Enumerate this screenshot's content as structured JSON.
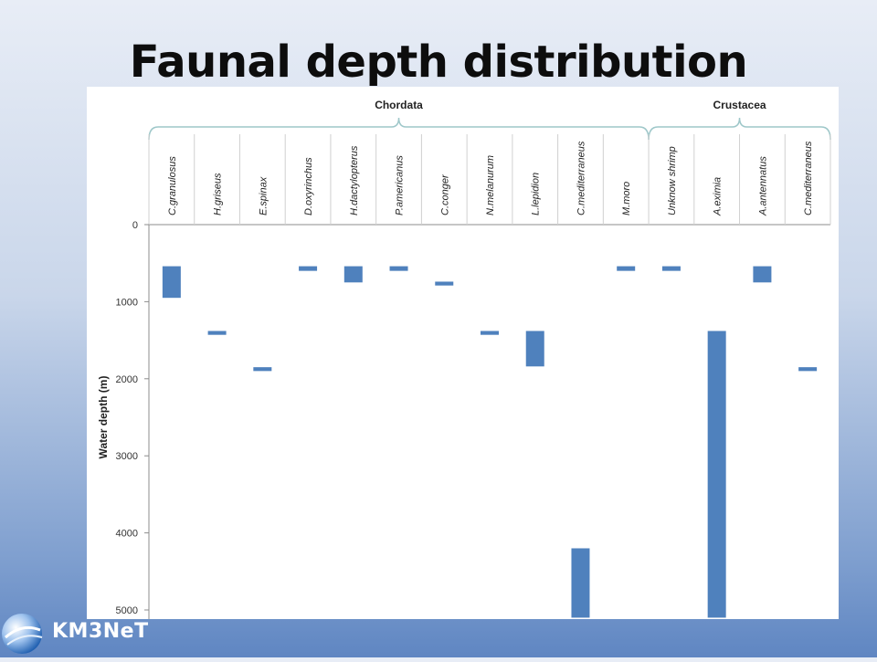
{
  "slide": {
    "title": "Faunal depth distribution",
    "logo_text": "KM3NeT"
  },
  "colors": {
    "bar": "#4f81bd",
    "axis": "#8c8c8c",
    "bracket": "#9ec7c9"
  },
  "chart_data": {
    "type": "bar",
    "orientation": "floating-vertical",
    "ylabel": "Water depth (m)",
    "xlabel": "",
    "ylim": [
      0,
      5000
    ],
    "y_inverted": true,
    "y_ticks": [
      0,
      1000,
      2000,
      3000,
      4000,
      5000
    ],
    "categories": [
      "C.granulosus",
      "H.griseus",
      "E.spinax",
      "D.oxyrinchus",
      "H.dactylopterus",
      "P.americanus",
      "C.conger",
      "N.melanurum",
      "L.lepidion",
      "C.mediterraneus",
      "M.moro",
      "Unknow shrimp",
      "A.eximia",
      "A.antennatus",
      "C.mediterraneus"
    ],
    "groups": [
      {
        "label": "Chordata",
        "start": 0,
        "end": 10
      },
      {
        "label": "Crustacea",
        "start": 11,
        "end": 14
      }
    ],
    "ranges": [
      [
        540,
        950
      ],
      [
        1380,
        1430
      ],
      [
        1850,
        1900
      ],
      [
        540,
        600
      ],
      [
        540,
        750
      ],
      [
        540,
        600
      ],
      [
        740,
        790
      ],
      [
        1380,
        1430
      ],
      [
        1380,
        1840
      ],
      [
        4200,
        5100
      ],
      [
        540,
        600
      ],
      [
        540,
        600
      ],
      [
        1380,
        5100
      ],
      [
        540,
        750
      ],
      [
        1850,
        1900
      ]
    ]
  }
}
